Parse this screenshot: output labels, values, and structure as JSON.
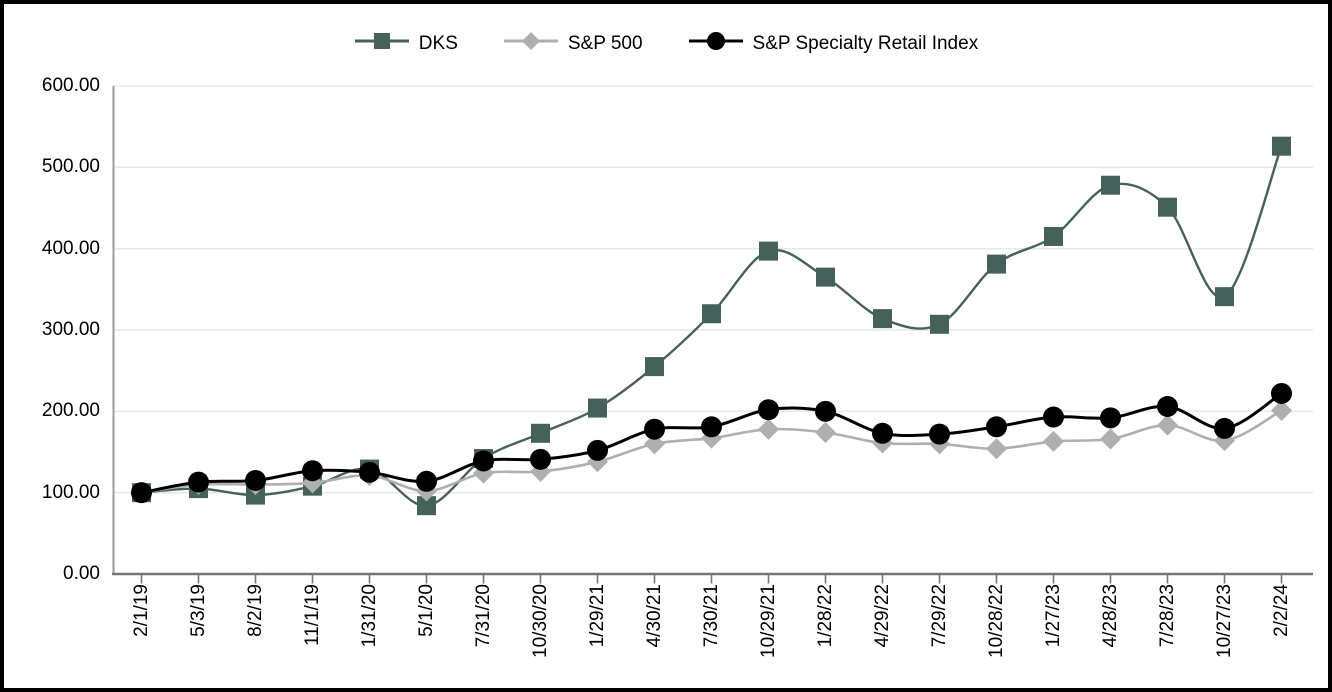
{
  "chart_data": {
    "type": "line",
    "title": "",
    "line_style": "smooth",
    "grid": true,
    "legend_position": "top",
    "categories": [
      "2/1/19",
      "5/3/19",
      "8/2/19",
      "11/1/19",
      "1/31/20",
      "5/1/20",
      "7/31/20",
      "10/30/20",
      "1/29/21",
      "4/30/21",
      "7/30/21",
      "10/29/21",
      "1/28/22",
      "4/29/22",
      "7/29/22",
      "10/28/22",
      "1/27/23",
      "4/28/23",
      "7/28/23",
      "10/27/23",
      "2/2/24"
    ],
    "series": [
      {
        "name": "DKS",
        "marker": "square",
        "color": "#45615A",
        "line_width": 2.4,
        "marker_size": 19,
        "values": [
          100,
          105,
          97,
          108,
          129,
          84,
          142,
          173,
          204,
          255,
          320,
          397,
          365,
          314,
          307,
          381,
          415,
          478,
          451,
          341,
          526
        ]
      },
      {
        "name": "S&P 500",
        "marker": "diamond",
        "color": "#AFAFAF",
        "line_width": 2.6,
        "marker_size": 21,
        "values": [
          100,
          110,
          110,
          112,
          121,
          102,
          124,
          126,
          138,
          160,
          167,
          178,
          174,
          161,
          160,
          154,
          163,
          166,
          183,
          164,
          201
        ]
      },
      {
        "name": "S&P Specialty Retail Index",
        "marker": "circle",
        "color": "#000000",
        "line_width": 3,
        "marker_size": 21,
        "values": [
          100,
          113,
          115,
          127,
          125,
          114,
          139,
          141,
          152,
          178,
          181,
          202,
          200,
          173,
          172,
          181,
          193,
          192,
          206,
          179,
          222
        ]
      }
    ],
    "yticks": {
      "values": [
        0,
        100,
        200,
        300,
        400,
        500,
        600
      ],
      "labels": [
        "0.00",
        "100.00",
        "200.00",
        "300.00",
        "400.00",
        "500.00",
        "600.00"
      ]
    },
    "ylim": [
      0,
      600
    ],
    "style": {
      "grid_color": "#E8E8E8",
      "axis_color": "#9B9B9B",
      "baseline_color": "#757575",
      "background": "#FFFFFF",
      "border_color": "#000000"
    }
  }
}
